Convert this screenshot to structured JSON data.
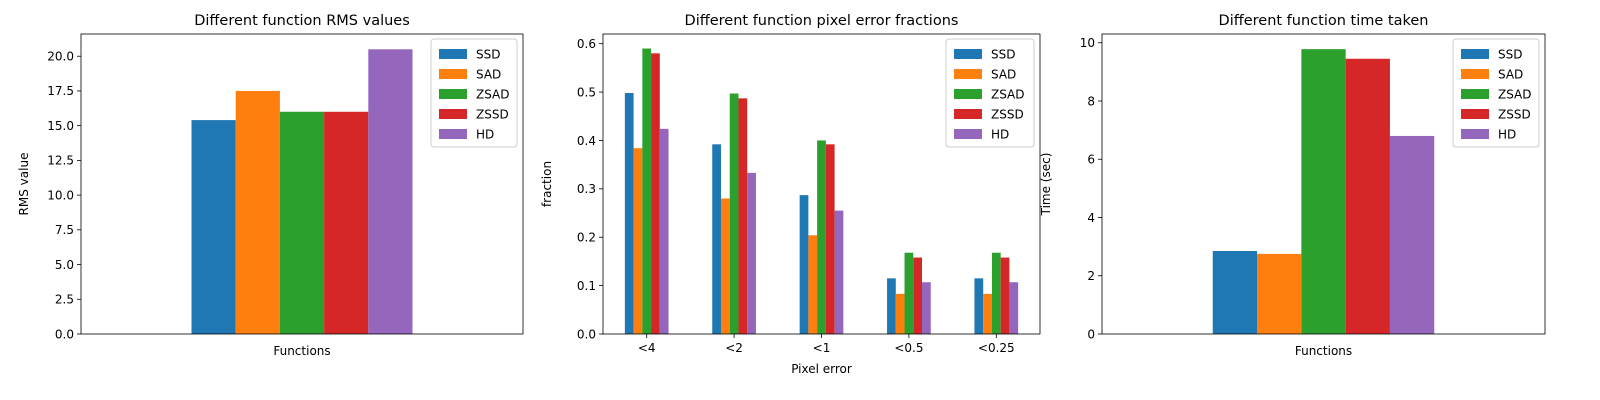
{
  "series_names": [
    "SSD",
    "SAD",
    "ZSAD",
    "ZSSD",
    "HD"
  ],
  "colors": [
    "#1f77b4",
    "#ff7f0e",
    "#2ca02c",
    "#d62728",
    "#9467bd"
  ],
  "chart_data": [
    {
      "type": "bar",
      "title": "Different function RMS values",
      "xlabel": "Functions",
      "ylabel": "RMS value",
      "categories": [
        ""
      ],
      "ylim": [
        0,
        21.6
      ],
      "yticks": [
        0.0,
        2.5,
        5.0,
        7.5,
        10.0,
        12.5,
        15.0,
        17.5,
        20.0
      ],
      "ytick_labels": [
        "0.0",
        "2.5",
        "5.0",
        "7.5",
        "10.0",
        "12.5",
        "15.0",
        "17.5",
        "20.0"
      ],
      "legend": "top-right",
      "grid": false,
      "series": [
        {
          "name": "SSD",
          "values": [
            15.4
          ]
        },
        {
          "name": "SAD",
          "values": [
            17.5
          ]
        },
        {
          "name": "ZSAD",
          "values": [
            16.0
          ]
        },
        {
          "name": "ZSSD",
          "values": [
            16.0
          ]
        },
        {
          "name": "HD",
          "values": [
            20.5
          ]
        }
      ]
    },
    {
      "type": "bar",
      "title": "Different function pixel error fractions",
      "xlabel": "Pixel error",
      "ylabel": "fraction",
      "categories": [
        "<4",
        "<2",
        "<1",
        "<0.5",
        "<0.25"
      ],
      "ylim": [
        0,
        0.62
      ],
      "yticks": [
        0.0,
        0.1,
        0.2,
        0.3,
        0.4,
        0.5,
        0.6
      ],
      "ytick_labels": [
        "0.0",
        "0.1",
        "0.2",
        "0.3",
        "0.4",
        "0.5",
        "0.6"
      ],
      "legend": "top-right",
      "grid": false,
      "series": [
        {
          "name": "SSD",
          "values": [
            0.498,
            0.392,
            0.287,
            0.115,
            0.115
          ]
        },
        {
          "name": "SAD",
          "values": [
            0.384,
            0.28,
            0.204,
            0.083,
            0.083
          ]
        },
        {
          "name": "ZSAD",
          "values": [
            0.59,
            0.497,
            0.4,
            0.168,
            0.168
          ]
        },
        {
          "name": "ZSSD",
          "values": [
            0.58,
            0.487,
            0.392,
            0.158,
            0.158
          ]
        },
        {
          "name": "HD",
          "values": [
            0.424,
            0.333,
            0.255,
            0.107,
            0.107
          ]
        }
      ]
    },
    {
      "type": "bar",
      "title": "Different function time taken",
      "xlabel": "Functions",
      "ylabel": "Time (sec)",
      "categories": [
        ""
      ],
      "ylim": [
        0,
        10.3
      ],
      "yticks": [
        0,
        2,
        4,
        6,
        8,
        10
      ],
      "ytick_labels": [
        "0",
        "2",
        "4",
        "6",
        "8",
        "10"
      ],
      "legend": "top-right",
      "grid": false,
      "series": [
        {
          "name": "SSD",
          "values": [
            2.85
          ]
        },
        {
          "name": "SAD",
          "values": [
            2.75
          ]
        },
        {
          "name": "ZSAD",
          "values": [
            9.78
          ]
        },
        {
          "name": "ZSSD",
          "values": [
            9.45
          ]
        },
        {
          "name": "HD",
          "values": [
            6.8
          ]
        }
      ]
    }
  ]
}
